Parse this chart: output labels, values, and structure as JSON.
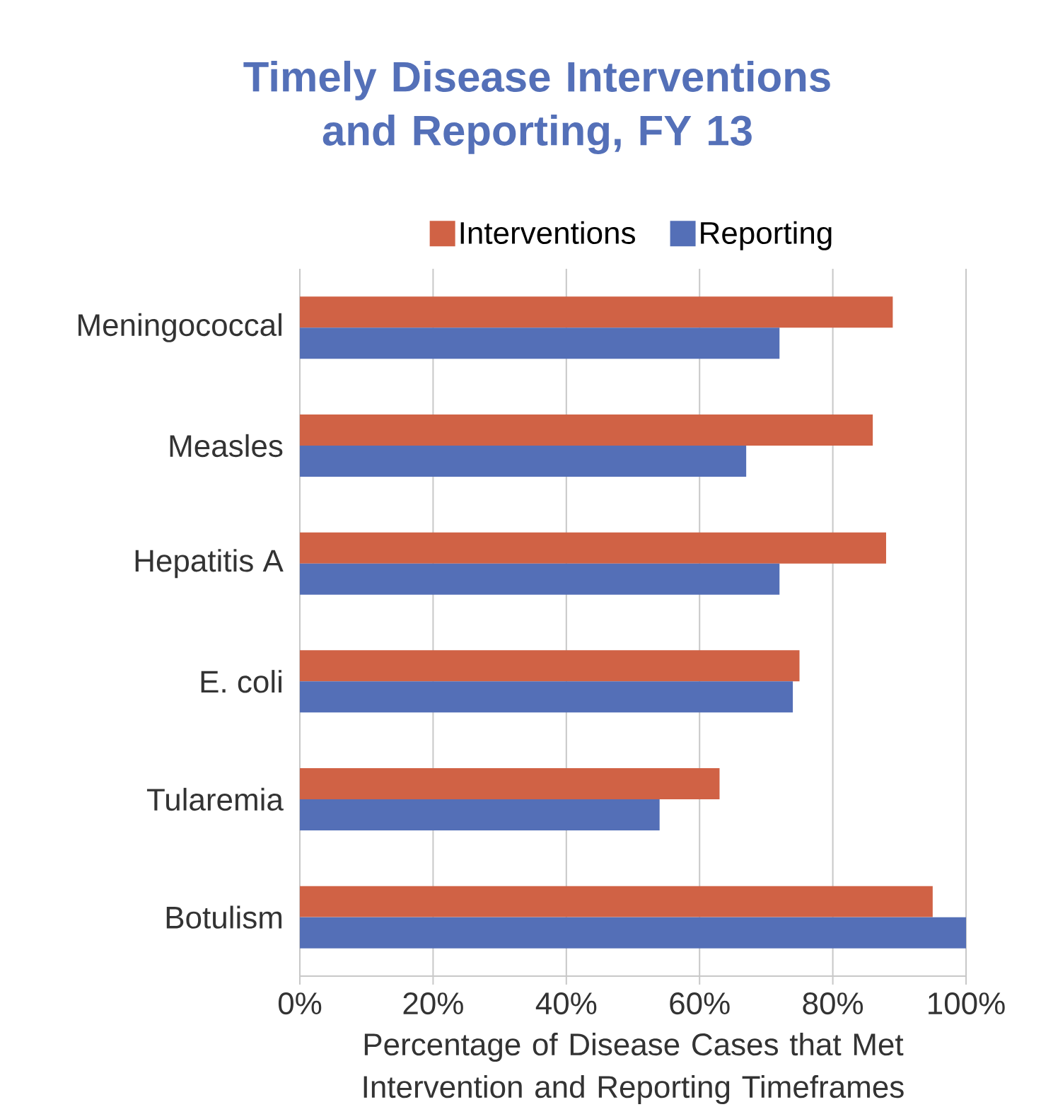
{
  "chart_data": {
    "type": "bar",
    "orientation": "horizontal",
    "title": "Timely Disease Interventions and Reporting, FY 13",
    "xlabel": "Percentage of Disease Cases that Met Intervention and Reporting Timeframes",
    "categories": [
      "Meningococcal",
      "Measles",
      "Hepatitis A",
      "E. coli",
      "Tularemia",
      "Botulism"
    ],
    "series": [
      {
        "name": "Interventions",
        "color": "#d06245",
        "values": [
          89,
          86,
          88,
          75,
          63,
          95
        ]
      },
      {
        "name": "Reporting",
        "color": "#546fb7",
        "values": [
          72,
          67,
          72,
          74,
          54,
          100
        ]
      }
    ],
    "xlim": [
      0,
      100
    ],
    "xticks": [
      {
        "value": 0,
        "label": "0%"
      },
      {
        "value": 20,
        "label": "20%"
      },
      {
        "value": 40,
        "label": "40%"
      },
      {
        "value": 60,
        "label": "60%"
      },
      {
        "value": 80,
        "label": "80%"
      },
      {
        "value": 100,
        "label": "100%"
      }
    ],
    "grid": "x",
    "legend": "top"
  }
}
